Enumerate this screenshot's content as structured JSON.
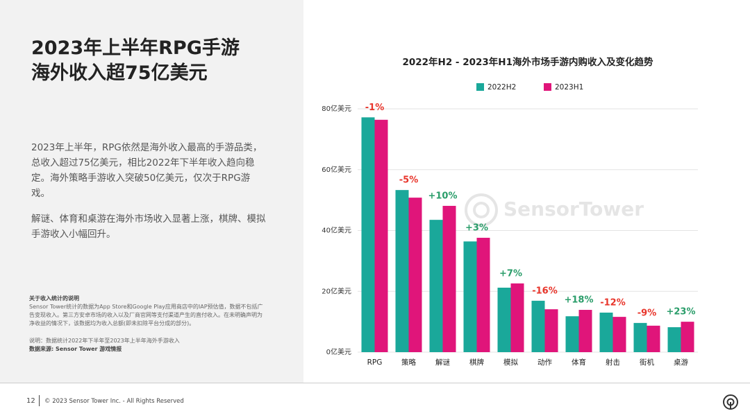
{
  "panel": {
    "headline": [
      "2023年上半年RPG手游",
      "海外收入超75亿美元"
    ],
    "paragraphs": [
      "2023年上半年，RPG依然是海外收入最高的手游品类，总收入超过75亿美元，相比2022年下半年收入趋向稳定。海外策略手游收入突破50亿美元，仅次于RPG游戏。",
      "解谜、体育和桌游在海外市场收入显著上涨，棋牌、模拟手游收入小幅回升。"
    ],
    "note_title": "关于收入统计的说明",
    "note_body": "Sensor Tower统计的数据为App Store和Google Play应用商店中的IAP预估值，数据不包括广告变现收入。第三方安卓市场的收入以及厂商官网等支付渠道产生的直付收入。在未明确声明为净收益的情况下，该数据均为收入总额(即未扣除平台分成的部分)。",
    "explain": "说明：数据统计2022年下半年至2023年上半年海外手游收入",
    "source": "数据来源: Sensor Tower 游戏情报",
    "page_number": "12",
    "copyright": "© 2023 Sensor Tower Inc. - All Rights Reserved",
    "watermark": "SensorTower"
  },
  "chart_data": {
    "type": "bar",
    "title": "2022年H2 - 2023年H1海外市场手游内购收入及变化趋势",
    "categories": [
      "RPG",
      "策略",
      "解谜",
      "棋牌",
      "模拟",
      "动作",
      "体育",
      "射击",
      "街机",
      "桌游"
    ],
    "series": [
      {
        "name": "2022H2",
        "color": "#1aa89a",
        "values": [
          77.2,
          53.3,
          43.5,
          36.4,
          21.2,
          16.9,
          11.8,
          13.0,
          9.6,
          8.2
        ]
      },
      {
        "name": "2023H1",
        "color": "#e0157a",
        "values": [
          76.4,
          50.8,
          48.1,
          37.6,
          22.6,
          14.1,
          13.9,
          11.6,
          8.7,
          10.0
        ]
      }
    ],
    "annotations": [
      "-1%",
      "-5%",
      "+10%",
      "+3%",
      "+7%",
      "-16%",
      "+18%",
      "-12%",
      "-9%",
      "+23%"
    ],
    "ylim": [
      0,
      80
    ],
    "yticks": [
      {
        "value": 0,
        "label": "0亿美元"
      },
      {
        "value": 20,
        "label": "20亿美元"
      },
      {
        "value": 40,
        "label": "40亿美元"
      },
      {
        "value": 60,
        "label": "60亿美元"
      },
      {
        "value": 80,
        "label": "80亿美元"
      }
    ],
    "grid": true,
    "legend": "top"
  }
}
